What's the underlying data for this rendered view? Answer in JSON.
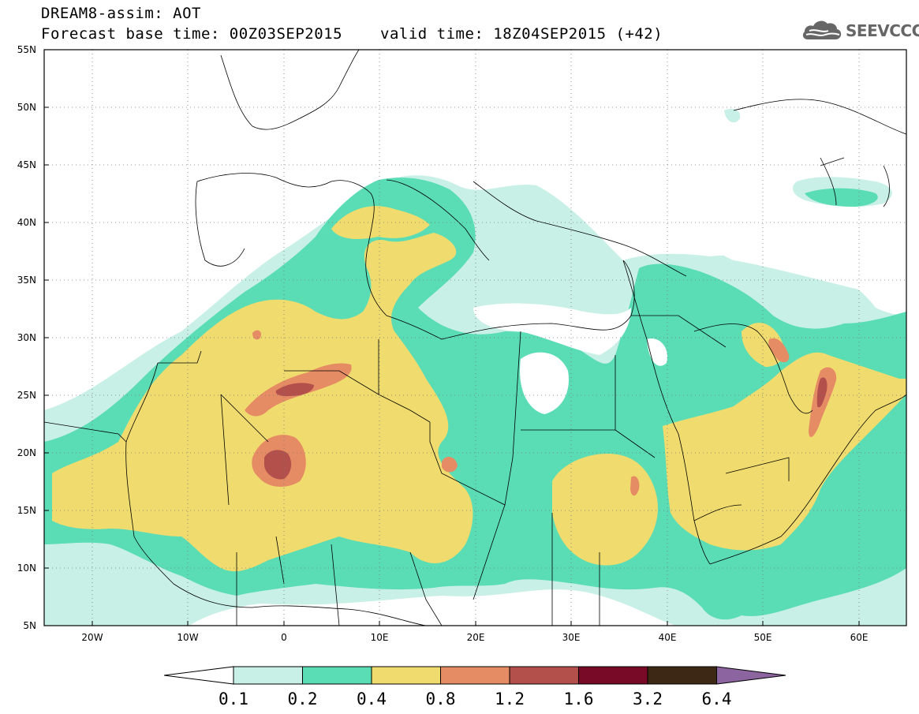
{
  "header": {
    "title_line1": "DREAM8-assim: AOT",
    "title_line2": "Forecast base time: 00Z03SEP2015",
    "valid_time": "valid time: 18Z04SEP2015 (+42)",
    "logo_text": "SEEVCCC"
  },
  "map": {
    "projection": "latitude-longitude",
    "lon_range": [
      -25,
      65
    ],
    "lat_range": [
      5,
      55
    ],
    "lat_labels": [
      "55N",
      "50N",
      "45N",
      "40N",
      "35N",
      "30N",
      "25N",
      "20N",
      "15N",
      "10N",
      "5N"
    ],
    "lon_labels": [
      "20W",
      "10W",
      "0",
      "10E",
      "20E",
      "30E",
      "40E",
      "50E",
      "60E"
    ],
    "grid": "dotted"
  },
  "colorbar": {
    "levels": [
      "0.1",
      "0.2",
      "0.4",
      "0.8",
      "1.2",
      "1.6",
      "3.2",
      "6.4"
    ],
    "colors": [
      "#c8f0e6",
      "#5adcb4",
      "#f0dc6e",
      "#e68c64",
      "#b4504b",
      "#780a28",
      "#3c2814",
      "#8c64a0"
    ],
    "under_color": "#ffffff",
    "over_color": "#8c64a0"
  }
}
